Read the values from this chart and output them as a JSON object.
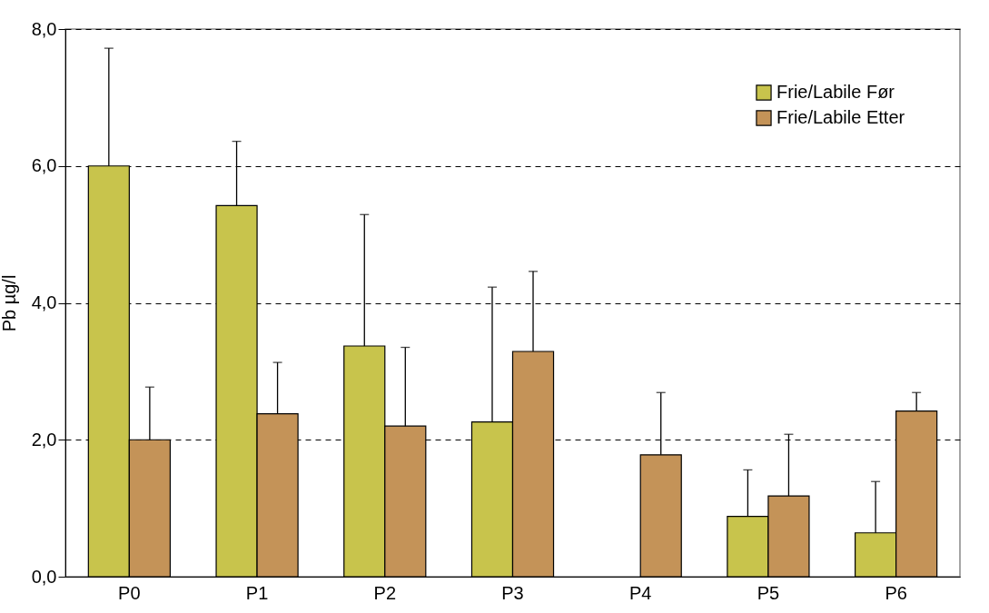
{
  "chart_data": {
    "type": "bar",
    "ylabel": "Pb µg/l",
    "categories": [
      "P0",
      "P1",
      "P2",
      "P3",
      "P4",
      "P5",
      "P6"
    ],
    "series": [
      {
        "name": "Frie/Labile Før",
        "color": "#c8c44c",
        "values": [
          6.0,
          5.42,
          3.37,
          2.26,
          null,
          0.88,
          0.64
        ],
        "errors": [
          [
            6.0,
            7.72
          ],
          [
            5.42,
            6.36
          ],
          [
            3.37,
            5.29
          ],
          [
            2.26,
            4.23
          ],
          null,
          [
            0.88,
            1.56
          ],
          [
            0.64,
            1.39
          ]
        ]
      },
      {
        "name": "Frie/Labile Etter",
        "color": "#c49358",
        "values": [
          2.0,
          2.38,
          2.2,
          3.29,
          1.78,
          1.18,
          2.42
        ],
        "errors": [
          [
            2.0,
            2.77
          ],
          [
            2.38,
            3.13
          ],
          [
            2.2,
            3.35
          ],
          [
            3.29,
            4.46
          ],
          [
            1.78,
            2.69
          ],
          [
            1.18,
            2.08
          ],
          [
            2.42,
            2.69
          ]
        ]
      }
    ],
    "ylim": [
      0,
      8
    ],
    "yticks": [
      {
        "value": 0,
        "label": "0,0"
      },
      {
        "value": 2,
        "label": "2,0"
      },
      {
        "value": 4,
        "label": "4,0"
      },
      {
        "value": 6,
        "label": "6,0"
      },
      {
        "value": 8,
        "label": "8,0"
      }
    ],
    "grid": "y",
    "legend": "top right"
  }
}
